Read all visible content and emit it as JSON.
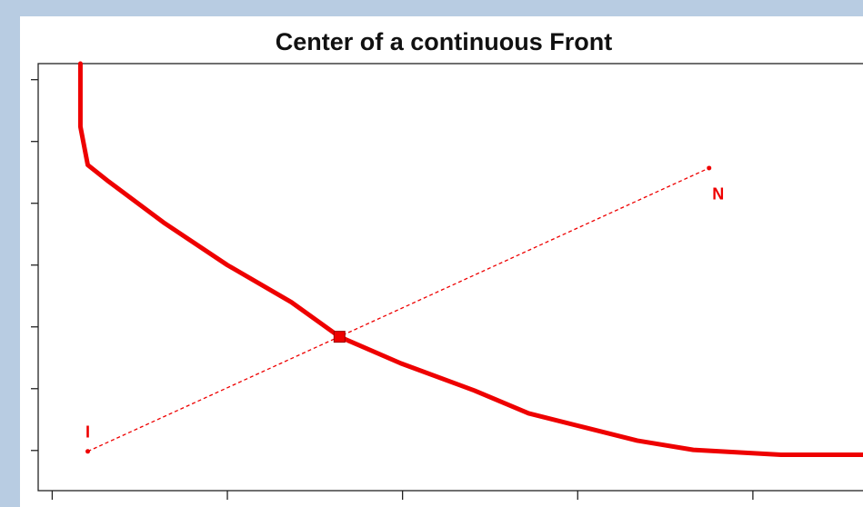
{
  "chart_data": {
    "type": "line",
    "title": "Center of a continuous Front",
    "xlim": [
      -0.08,
      4.8
    ],
    "ylim": [
      -0.65,
      6.26
    ],
    "xticks": [
      0,
      1,
      2,
      3,
      4
    ],
    "yticks": [
      0,
      1,
      2,
      3,
      4,
      5,
      6
    ],
    "series": [
      {
        "color": "#ee0000",
        "x": [
          0.161,
          0.161,
          0.203,
          0.323,
          0.635,
          1.0,
          1.365,
          1.64,
          1.99,
          2.41,
          2.72,
          3.03,
          3.34,
          3.66,
          4.16,
          4.64
        ],
        "values": [
          6.26,
          5.24,
          4.62,
          4.35,
          3.69,
          3.0,
          2.4,
          1.84,
          1.41,
          0.97,
          0.6,
          0.38,
          0.16,
          0.01,
          -0.07,
          -0.07
        ]
      }
    ],
    "points": [
      {
        "label": "I",
        "x": 0.203,
        "y": -0.015
      },
      {
        "label": "N",
        "x": 3.75,
        "y": 4.57
      }
    ],
    "center": {
      "x": 1.64,
      "y": 1.84
    }
  }
}
